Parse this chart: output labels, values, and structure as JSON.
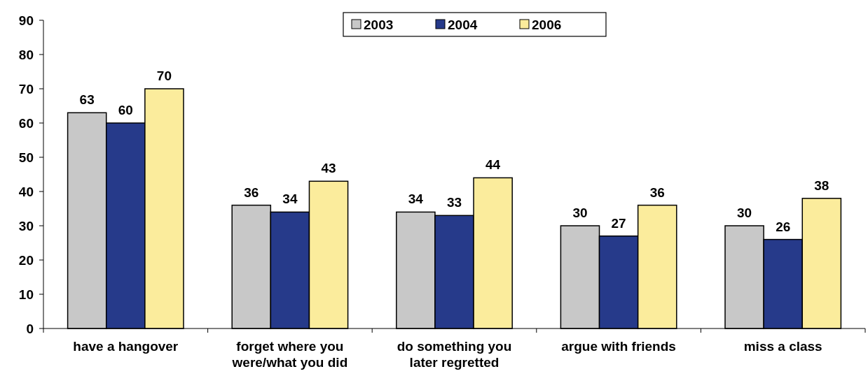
{
  "chart_data": {
    "type": "bar",
    "categories": [
      "have a hangover",
      "forget where you were/what you did",
      "do something you later regretted",
      "argue with friends",
      "miss a class"
    ],
    "series": [
      {
        "name": "2003",
        "color": "#c8c8c8",
        "values": [
          63,
          36,
          34,
          30,
          30
        ]
      },
      {
        "name": "2004",
        "color": "#263a8a",
        "values": [
          60,
          34,
          33,
          27,
          26
        ]
      },
      {
        "name": "2006",
        "color": "#fbec9c",
        "values": [
          70,
          43,
          44,
          36,
          38
        ]
      }
    ],
    "ylim": [
      0,
      90
    ],
    "yticks": [
      0,
      10,
      20,
      30,
      40,
      50,
      60,
      70,
      80,
      90
    ],
    "data_labels": true,
    "legend": "top",
    "grid": false
  }
}
